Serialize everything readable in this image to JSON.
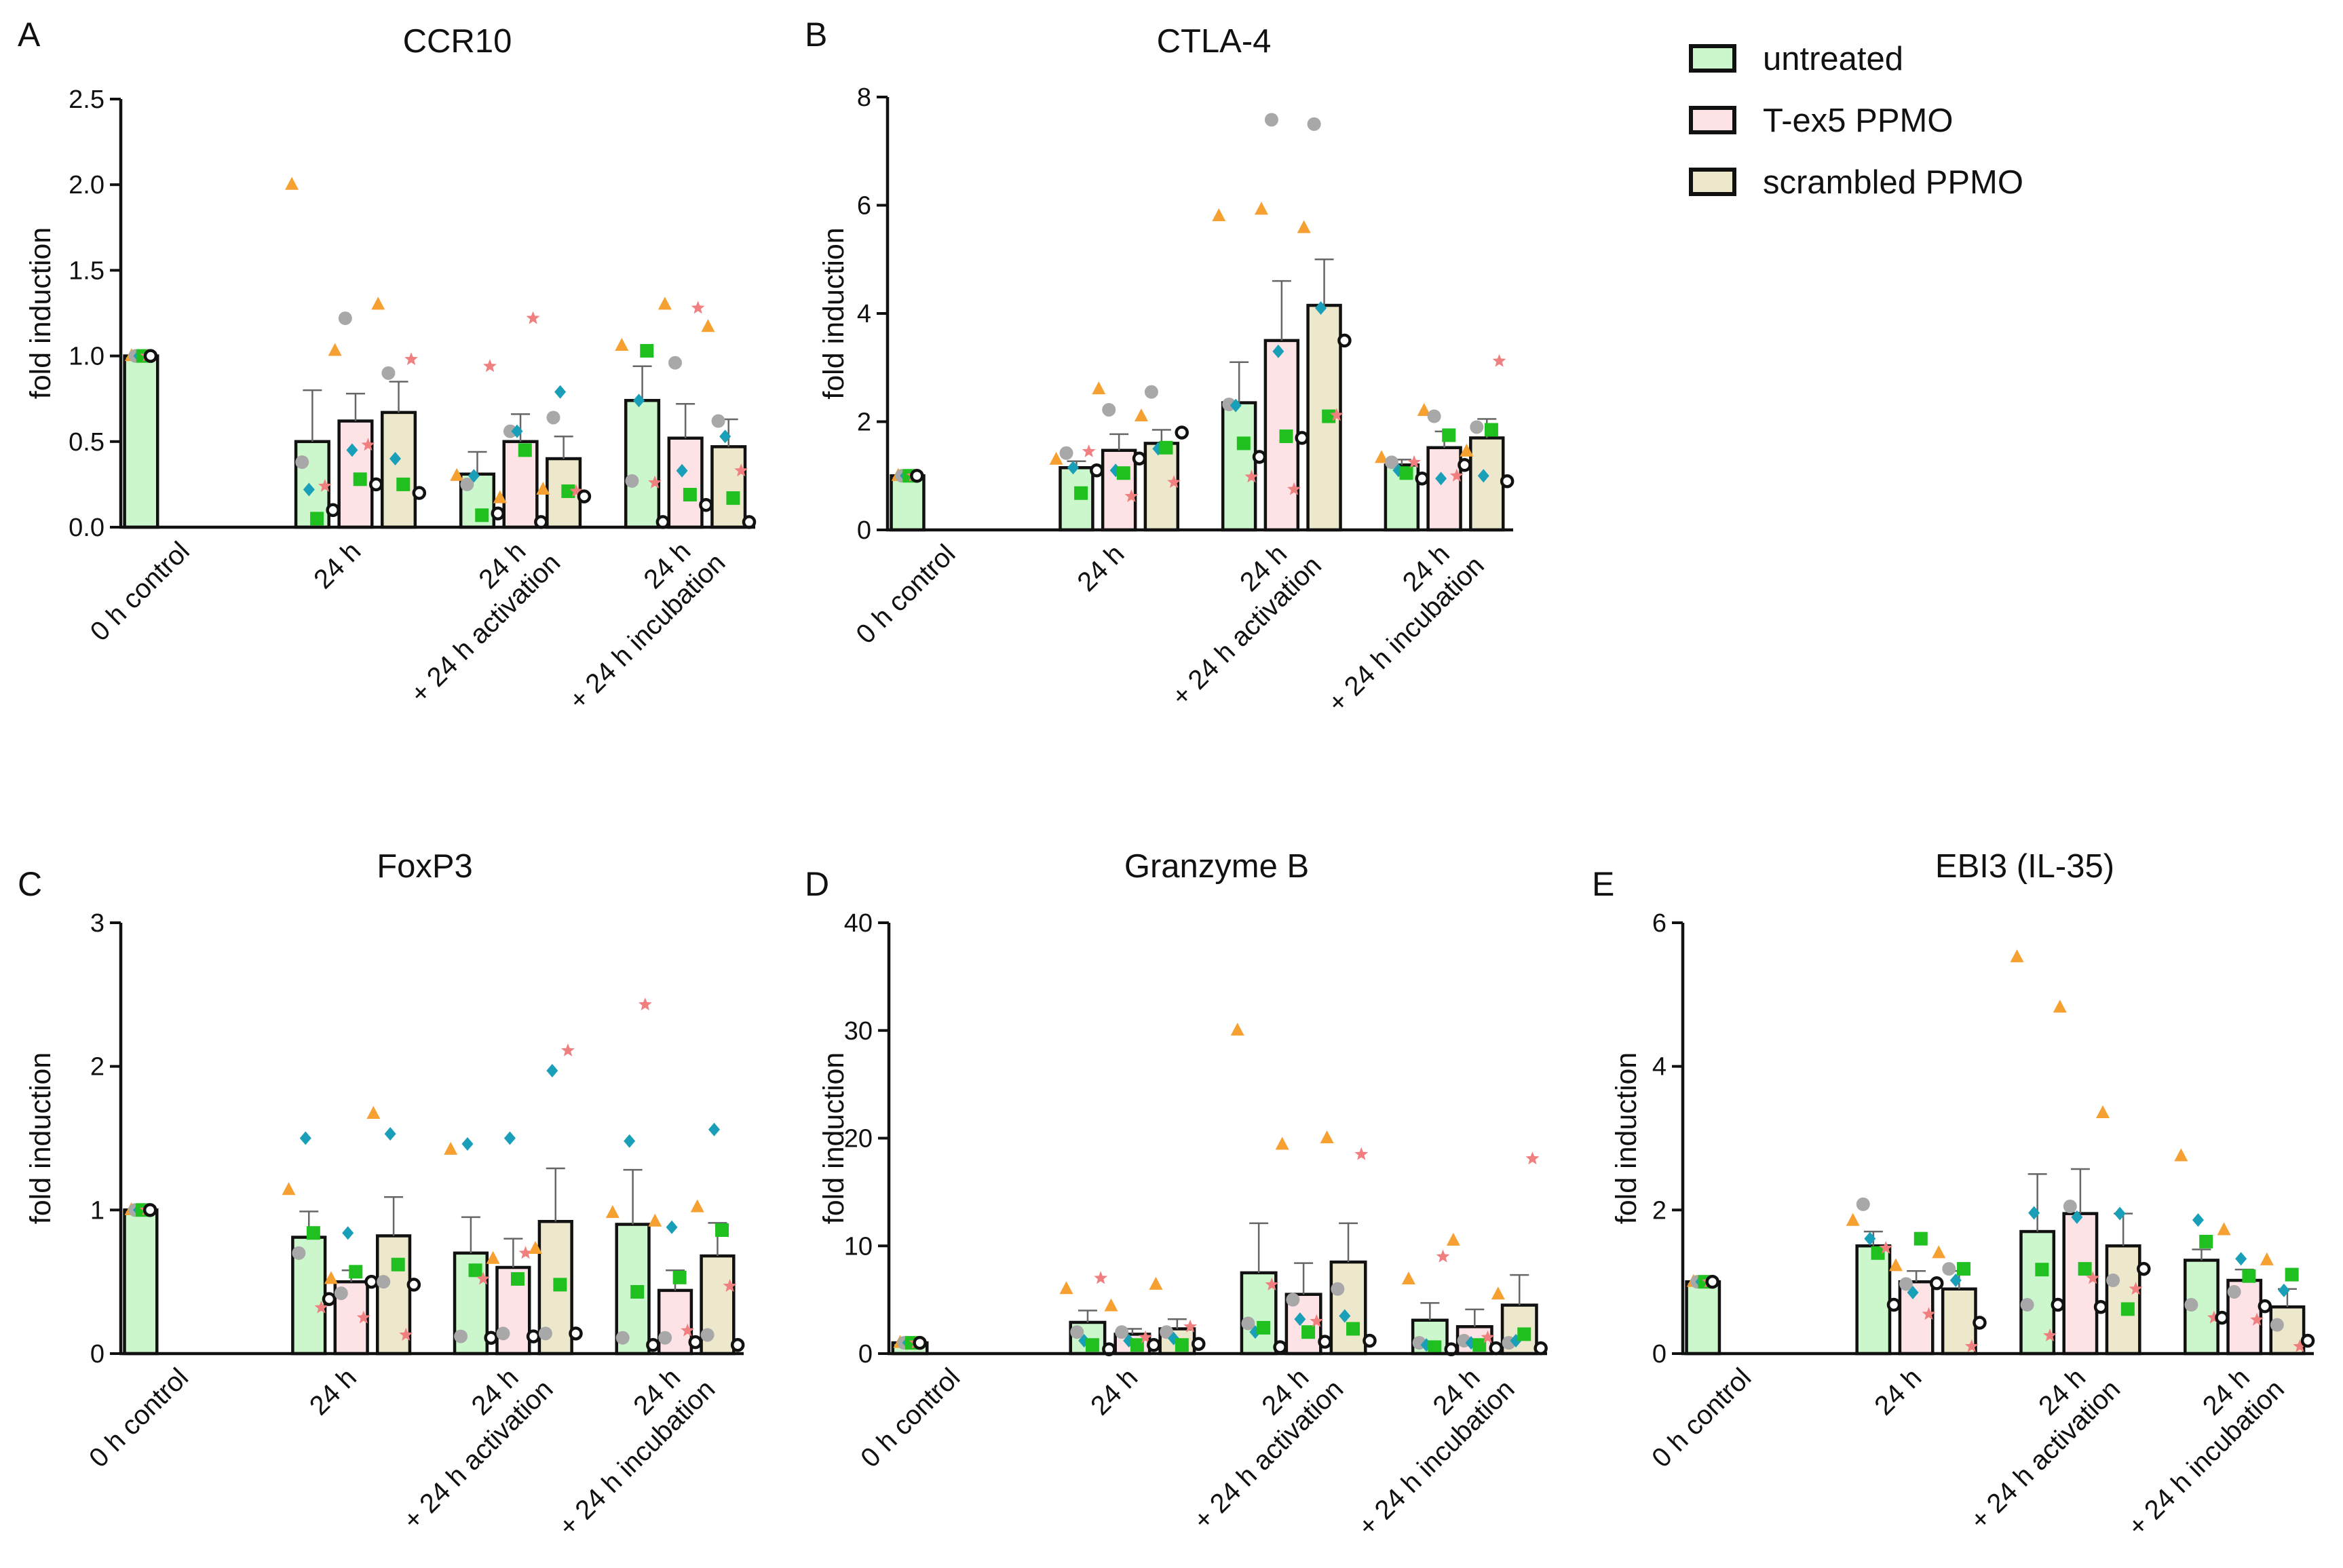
{
  "legend": {
    "items": [
      {
        "label": "untreated",
        "color": "#ccf7cc"
      },
      {
        "label": "T-ex5 PPMO",
        "color": "#fde3e6"
      },
      {
        "label": "scrambled PPMO",
        "color": "#ede7cc"
      }
    ]
  },
  "colors": {
    "bar_fill": [
      "#ccf7cc",
      "#fde3e6",
      "#ede7cc"
    ],
    "bar_stroke": "#111111",
    "donor_orange": "#f5a030",
    "donor_grey": "#a8a8a8",
    "donor_blue": "#1a9fb8",
    "donor_green": "#1fc01f",
    "donor_pink": "#f08080",
    "donor_open": "#111111"
  },
  "marker_names": [
    "orange-triangle",
    "grey-circle",
    "blue-diamond",
    "green-square",
    "pink-star",
    "open-circle"
  ],
  "chart_data": [
    {
      "panel": "A",
      "type": "bar",
      "title": "CCR10",
      "ylabel": "fold induction",
      "ylim": [
        0,
        2.5
      ],
      "yticks": [
        0.0,
        0.5,
        1.0,
        1.5,
        2.0,
        2.5
      ],
      "ytick_labels": [
        "0.0",
        "0.5",
        "1.0",
        "1.5",
        "2.0",
        "2.5"
      ],
      "group_label_lines": [
        [
          "0 h control"
        ],
        [
          "24 h"
        ],
        [
          "24 h",
          "+ 24 h activation"
        ],
        [
          "24 h",
          "+ 24 h incubation"
        ]
      ],
      "series_names": [
        "untreated",
        "T-ex5 PPMO",
        "scrambled PPMO"
      ],
      "bars": [
        {
          "group": 0,
          "series": 0,
          "mean": 1.0,
          "sem": 0,
          "points": [
            1.0,
            1.0,
            1.0,
            1.0,
            1.0,
            1.0
          ]
        },
        {
          "group": 1,
          "series": 0,
          "mean": 0.5,
          "sem": 0.3,
          "points": [
            2.0,
            0.38,
            0.22,
            0.05,
            0.24,
            0.1
          ]
        },
        {
          "group": 1,
          "series": 1,
          "mean": 0.62,
          "sem": 0.16,
          "points": [
            1.03,
            1.22,
            0.45,
            0.28,
            0.48,
            0.25
          ]
        },
        {
          "group": 1,
          "series": 2,
          "mean": 0.67,
          "sem": 0.18,
          "points": [
            1.3,
            0.9,
            0.4,
            0.25,
            0.98,
            0.2
          ]
        },
        {
          "group": 2,
          "series": 0,
          "mean": 0.31,
          "sem": 0.13,
          "points": [
            0.3,
            0.25,
            0.3,
            0.07,
            0.94,
            0.08
          ]
        },
        {
          "group": 2,
          "series": 1,
          "mean": 0.5,
          "sem": 0.16,
          "points": [
            0.17,
            0.56,
            0.56,
            0.45,
            1.22,
            0.03
          ]
        },
        {
          "group": 2,
          "series": 2,
          "mean": 0.4,
          "sem": 0.13,
          "points": [
            0.22,
            0.64,
            0.79,
            0.21,
            0.21,
            0.18
          ]
        },
        {
          "group": 3,
          "series": 0,
          "mean": 0.74,
          "sem": 0.2,
          "points": [
            1.06,
            0.27,
            0.74,
            1.03,
            0.26,
            0.03
          ]
        },
        {
          "group": 3,
          "series": 1,
          "mean": 0.52,
          "sem": 0.2,
          "points": [
            1.3,
            0.96,
            0.33,
            0.19,
            1.28,
            0.13
          ]
        },
        {
          "group": 3,
          "series": 2,
          "mean": 0.47,
          "sem": 0.16,
          "points": [
            1.17,
            0.62,
            0.53,
            0.17,
            0.33,
            0.03
          ]
        }
      ]
    },
    {
      "panel": "B",
      "type": "bar",
      "title": "CTLA-4",
      "ylabel": "fold induction",
      "ylim": [
        0,
        8
      ],
      "yticks": [
        0,
        2,
        4,
        6,
        8
      ],
      "ytick_labels": [
        "0",
        "2",
        "4",
        "6",
        "8"
      ],
      "group_label_lines": [
        [
          "0 h control"
        ],
        [
          "24 h"
        ],
        [
          "24 h",
          "+ 24 h activation"
        ],
        [
          "24 h",
          "+ 24 h incubation"
        ]
      ],
      "series_names": [
        "untreated",
        "T-ex5 PPMO",
        "scrambled PPMO"
      ],
      "bars": [
        {
          "group": 0,
          "series": 0,
          "mean": 1.0,
          "sem": 0,
          "points": [
            1.0,
            1.0,
            1.0,
            1.0,
            1.0,
            1.0
          ]
        },
        {
          "group": 1,
          "series": 0,
          "mean": 1.15,
          "sem": 0.12,
          "points": [
            1.3,
            1.42,
            1.15,
            0.68,
            1.45,
            1.1
          ]
        },
        {
          "group": 1,
          "series": 1,
          "mean": 1.47,
          "sem": 0.3,
          "points": [
            2.6,
            2.22,
            1.1,
            1.05,
            0.62,
            1.32
          ]
        },
        {
          "group": 1,
          "series": 2,
          "mean": 1.6,
          "sem": 0.25,
          "points": [
            2.1,
            2.55,
            1.5,
            1.52,
            0.88,
            1.8
          ]
        },
        {
          "group": 2,
          "series": 0,
          "mean": 2.35,
          "sem": 0.75,
          "points": [
            5.8,
            2.32,
            2.3,
            1.6,
            0.98,
            1.35
          ]
        },
        {
          "group": 2,
          "series": 1,
          "mean": 3.5,
          "sem": 1.1,
          "points": [
            5.92,
            7.58,
            3.3,
            1.73,
            0.75,
            1.7
          ]
        },
        {
          "group": 2,
          "series": 2,
          "mean": 4.15,
          "sem": 0.85,
          "points": [
            5.58,
            7.5,
            4.1,
            2.1,
            2.12,
            3.5
          ]
        },
        {
          "group": 3,
          "series": 0,
          "mean": 1.2,
          "sem": 0.1,
          "points": [
            1.33,
            1.25,
            1.1,
            1.05,
            1.25,
            0.95
          ]
        },
        {
          "group": 3,
          "series": 1,
          "mean": 1.52,
          "sem": 0.3,
          "points": [
            2.2,
            2.1,
            0.95,
            1.75,
            1.0,
            1.2
          ]
        },
        {
          "group": 3,
          "series": 2,
          "mean": 1.7,
          "sem": 0.35,
          "points": [
            1.45,
            1.9,
            1.0,
            1.85,
            3.12,
            0.9
          ]
        }
      ]
    },
    {
      "panel": "C",
      "type": "bar",
      "title": "FoxP3",
      "ylabel": "fold induction",
      "ylim": [
        0,
        3
      ],
      "yticks": [
        0,
        1,
        2,
        3
      ],
      "ytick_labels": [
        "0",
        "1",
        "2",
        "3"
      ],
      "group_label_lines": [
        [
          "0 h control"
        ],
        [
          "24 h"
        ],
        [
          "24 h",
          "+ 24 h activation"
        ],
        [
          "24 h",
          "+ 24 h incubation"
        ]
      ],
      "series_names": [
        "untreated",
        "T-ex5 PPMO",
        "scrambled PPMO"
      ],
      "bars": [
        {
          "group": 0,
          "series": 0,
          "mean": 1.0,
          "sem": 0,
          "points": [
            1.0,
            1.0,
            1.0,
            1.0,
            1.0,
            1.0
          ]
        },
        {
          "group": 1,
          "series": 0,
          "mean": 0.81,
          "sem": 0.18,
          "points": [
            1.14,
            0.7,
            1.5,
            0.84,
            0.32,
            0.38
          ]
        },
        {
          "group": 1,
          "series": 1,
          "mean": 0.5,
          "sem": 0.08,
          "points": [
            0.52,
            0.42,
            0.84,
            0.57,
            0.25,
            0.5
          ]
        },
        {
          "group": 1,
          "series": 2,
          "mean": 0.82,
          "sem": 0.27,
          "points": [
            1.67,
            0.5,
            1.53,
            0.62,
            0.13,
            0.48
          ]
        },
        {
          "group": 2,
          "series": 0,
          "mean": 0.7,
          "sem": 0.25,
          "points": [
            1.42,
            0.12,
            1.46,
            0.58,
            0.52,
            0.11
          ]
        },
        {
          "group": 2,
          "series": 1,
          "mean": 0.6,
          "sem": 0.2,
          "points": [
            0.66,
            0.14,
            1.5,
            0.52,
            0.7,
            0.12
          ]
        },
        {
          "group": 2,
          "series": 2,
          "mean": 0.92,
          "sem": 0.37,
          "points": [
            0.73,
            0.14,
            1.97,
            0.48,
            2.11,
            0.14
          ]
        },
        {
          "group": 3,
          "series": 0,
          "mean": 0.9,
          "sem": 0.38,
          "points": [
            0.98,
            0.11,
            1.48,
            0.43,
            2.43,
            0.06
          ]
        },
        {
          "group": 3,
          "series": 1,
          "mean": 0.44,
          "sem": 0.14,
          "points": [
            0.92,
            0.11,
            0.88,
            0.53,
            0.16,
            0.08
          ]
        },
        {
          "group": 3,
          "series": 2,
          "mean": 0.68,
          "sem": 0.23,
          "points": [
            1.02,
            0.13,
            1.56,
            0.86,
            0.47,
            0.06
          ]
        }
      ]
    },
    {
      "panel": "D",
      "type": "bar",
      "title": "Granzyme B",
      "ylabel": "fold induction",
      "ylim": [
        0,
        40
      ],
      "yticks": [
        0,
        10,
        20,
        30,
        40
      ],
      "ytick_labels": [
        "0",
        "10",
        "20",
        "30",
        "40"
      ],
      "group_label_lines": [
        [
          "0 h control"
        ],
        [
          "24 h"
        ],
        [
          "24 h",
          "+ 24 h activation"
        ],
        [
          "24 h",
          "+ 24 h incubation"
        ]
      ],
      "series_names": [
        "untreated",
        "T-ex5 PPMO",
        "scrambled PPMO"
      ],
      "bars": [
        {
          "group": 0,
          "series": 0,
          "mean": 1.0,
          "sem": 0,
          "points": [
            1.0,
            1.0,
            1.0,
            1.0,
            1.0,
            1.0
          ]
        },
        {
          "group": 1,
          "series": 0,
          "mean": 2.9,
          "sem": 1.1,
          "points": [
            6.0,
            2.0,
            1.2,
            0.8,
            7.0,
            0.4
          ]
        },
        {
          "group": 1,
          "series": 1,
          "mean": 1.8,
          "sem": 0.5,
          "points": [
            4.4,
            2.0,
            1.2,
            0.8,
            1.5,
            0.8
          ]
        },
        {
          "group": 1,
          "series": 2,
          "mean": 2.3,
          "sem": 0.9,
          "points": [
            6.4,
            2.0,
            1.4,
            0.8,
            2.5,
            0.9
          ]
        },
        {
          "group": 2,
          "series": 0,
          "mean": 7.5,
          "sem": 4.6,
          "points": [
            30.0,
            2.8,
            2.0,
            2.4,
            6.4,
            0.6
          ]
        },
        {
          "group": 2,
          "series": 1,
          "mean": 5.5,
          "sem": 2.9,
          "points": [
            19.4,
            5.0,
            3.2,
            2.0,
            3.0,
            1.1
          ]
        },
        {
          "group": 2,
          "series": 2,
          "mean": 8.5,
          "sem": 3.6,
          "points": [
            20.0,
            6.0,
            3.5,
            2.3,
            18.5,
            1.2
          ]
        },
        {
          "group": 3,
          "series": 0,
          "mean": 3.1,
          "sem": 1.6,
          "points": [
            6.9,
            1.0,
            0.8,
            0.6,
            9.0,
            0.4
          ]
        },
        {
          "group": 3,
          "series": 1,
          "mean": 2.5,
          "sem": 1.6,
          "points": [
            10.5,
            1.2,
            1.0,
            0.8,
            1.5,
            0.5
          ]
        },
        {
          "group": 3,
          "series": 2,
          "mean": 4.5,
          "sem": 2.8,
          "points": [
            5.5,
            1.0,
            1.2,
            1.8,
            18.1,
            0.5
          ]
        }
      ]
    },
    {
      "panel": "E",
      "type": "bar",
      "title": "EBI3 (IL-35)",
      "ylabel": "fold induction",
      "ylim": [
        0,
        6
      ],
      "yticks": [
        0,
        2,
        4,
        6
      ],
      "ytick_labels": [
        "0",
        "2",
        "4",
        "6"
      ],
      "group_label_lines": [
        [
          "0 h control"
        ],
        [
          "24 h"
        ],
        [
          "24 h",
          "+ 24 h activation"
        ],
        [
          "24 h",
          "+ 24 h incubation"
        ]
      ],
      "series_names": [
        "untreated",
        "T-ex5 PPMO",
        "scrambled PPMO"
      ],
      "bars": [
        {
          "group": 0,
          "series": 0,
          "mean": 1.0,
          "sem": 0,
          "points": [
            1.0,
            1.0,
            1.0,
            1.0,
            1.0,
            1.0
          ]
        },
        {
          "group": 1,
          "series": 0,
          "mean": 1.5,
          "sem": 0.2,
          "points": [
            1.85,
            2.08,
            1.6,
            1.4,
            1.47,
            0.68
          ]
        },
        {
          "group": 1,
          "series": 1,
          "mean": 1.0,
          "sem": 0.15,
          "points": [
            1.22,
            0.97,
            0.85,
            1.6,
            0.55,
            0.98
          ]
        },
        {
          "group": 1,
          "series": 2,
          "mean": 0.9,
          "sem": 0.25,
          "points": [
            1.4,
            1.18,
            1.02,
            1.18,
            0.1,
            0.43
          ]
        },
        {
          "group": 2,
          "series": 0,
          "mean": 1.7,
          "sem": 0.8,
          "points": [
            5.52,
            0.68,
            1.96,
            1.17,
            0.25,
            0.68
          ]
        },
        {
          "group": 2,
          "series": 1,
          "mean": 1.95,
          "sem": 0.62,
          "points": [
            4.82,
            2.05,
            1.9,
            1.18,
            1.05,
            0.65
          ]
        },
        {
          "group": 2,
          "series": 2,
          "mean": 1.5,
          "sem": 0.45,
          "points": [
            3.35,
            1.02,
            1.95,
            0.62,
            0.9,
            1.18
          ]
        },
        {
          "group": 3,
          "series": 0,
          "mean": 1.3,
          "sem": 0.15,
          "points": [
            2.75,
            0.68,
            1.86,
            1.56,
            0.5,
            0.5
          ]
        },
        {
          "group": 3,
          "series": 1,
          "mean": 1.02,
          "sem": 0.15,
          "points": [
            1.72,
            0.86,
            1.32,
            1.08,
            0.47,
            0.66
          ]
        },
        {
          "group": 3,
          "series": 2,
          "mean": 0.65,
          "sem": 0.25,
          "points": [
            1.3,
            0.4,
            0.88,
            1.1,
            0.1,
            0.18
          ]
        }
      ]
    }
  ]
}
